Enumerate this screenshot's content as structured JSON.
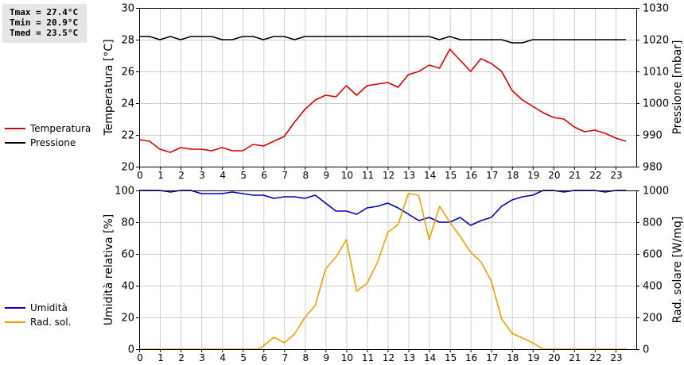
{
  "stats": {
    "tmax": "Tmax = 27.4°C",
    "tmin": "Tmin = 20.9°C",
    "tmed": "Tmed = 23.5°C"
  },
  "chart_data": [
    {
      "type": "line",
      "xlim": [
        0,
        24
      ],
      "xticks": [
        "0",
        "1",
        "2",
        "3",
        "4",
        "5",
        "6",
        "7",
        "8",
        "9",
        "10",
        "11",
        "12",
        "13",
        "14",
        "15",
        "16",
        "17",
        "18",
        "19",
        "20",
        "21",
        "22",
        "23"
      ],
      "ylabel": "Temperatura [°C]",
      "ylim": [
        20,
        30
      ],
      "yticks": [
        "20",
        "22",
        "24",
        "26",
        "28",
        "30"
      ],
      "ylabel_right": "Pressione [mbar]",
      "ylim_right": [
        980,
        1030
      ],
      "yticks_right": [
        "980",
        "990",
        "1000",
        "1010",
        "1020",
        "1030"
      ],
      "grid": true,
      "legend_position": "left",
      "series": [
        {
          "name": "Temperatura",
          "color": "#dd0000",
          "axis": "left",
          "x": [
            0,
            0.5,
            1,
            1.5,
            2,
            2.5,
            3,
            3.5,
            4,
            4.5,
            5,
            5.5,
            6,
            6.5,
            7,
            7.5,
            8,
            8.5,
            9,
            9.5,
            10,
            10.5,
            11,
            11.5,
            12,
            12.5,
            13,
            13.5,
            14,
            14.5,
            15,
            15.5,
            16,
            16.5,
            17,
            17.5,
            18,
            18.5,
            19,
            19.5,
            20,
            20.5,
            21,
            21.5,
            22,
            22.5,
            23,
            23.5
          ],
          "y": [
            21.7,
            21.6,
            21.1,
            20.9,
            21.2,
            21.1,
            21.1,
            21.0,
            21.2,
            21.0,
            21.0,
            21.4,
            21.3,
            21.6,
            21.9,
            22.8,
            23.6,
            24.2,
            24.5,
            24.4,
            25.1,
            24.5,
            25.1,
            25.2,
            25.3,
            25.0,
            25.8,
            26.0,
            26.4,
            26.2,
            27.4,
            26.7,
            26.0,
            26.8,
            26.5,
            26.0,
            24.8,
            24.2,
            23.8,
            23.4,
            23.1,
            23.0,
            22.5,
            22.2,
            22.3,
            22.1,
            21.8,
            21.6
          ]
        },
        {
          "name": "Pressione",
          "color": "#000000",
          "axis": "right",
          "x": [
            0,
            0.5,
            1,
            1.5,
            2,
            2.5,
            3,
            3.5,
            4,
            4.5,
            5,
            5.5,
            6,
            6.5,
            7,
            7.5,
            8,
            8.5,
            9,
            9.5,
            10,
            10.5,
            11,
            11.5,
            12,
            12.5,
            13,
            13.5,
            14,
            14.5,
            15,
            15.5,
            16,
            16.5,
            17,
            17.5,
            18,
            18.5,
            19,
            19.5,
            20,
            20.5,
            21,
            21.5,
            22,
            22.5,
            23,
            23.5
          ],
          "y": [
            1021,
            1021,
            1020,
            1021,
            1020,
            1021,
            1021,
            1021,
            1020,
            1020,
            1021,
            1021,
            1020,
            1021,
            1021,
            1020,
            1021,
            1021,
            1021,
            1021,
            1021,
            1021,
            1021,
            1021,
            1021,
            1021,
            1021,
            1021,
            1021,
            1020,
            1021,
            1020,
            1020,
            1020,
            1020,
            1020,
            1019,
            1019,
            1020,
            1020,
            1020,
            1020,
            1020,
            1020,
            1020,
            1020,
            1020,
            1020
          ]
        }
      ]
    },
    {
      "type": "line",
      "xlim": [
        0,
        24
      ],
      "xticks": [
        "0",
        "1",
        "2",
        "3",
        "4",
        "5",
        "6",
        "7",
        "8",
        "9",
        "10",
        "11",
        "12",
        "13",
        "14",
        "15",
        "16",
        "17",
        "18",
        "19",
        "20",
        "21",
        "22",
        "23"
      ],
      "ylabel": "Umidità relativa [%]",
      "ylim": [
        0,
        100
      ],
      "yticks": [
        "0",
        "20",
        "40",
        "60",
        "80",
        "100"
      ],
      "ylabel_right": "Rad. solare [W/mq]",
      "ylim_right": [
        0,
        1000
      ],
      "yticks_right": [
        "0",
        "200",
        "400",
        "600",
        "800",
        "1000"
      ],
      "grid": true,
      "legend_position": "left",
      "series": [
        {
          "name": "Umidità",
          "color": "#0000bb",
          "axis": "left",
          "x": [
            0,
            0.5,
            1,
            1.5,
            2,
            2.5,
            3,
            3.5,
            4,
            4.5,
            5,
            5.5,
            6,
            6.5,
            7,
            7.5,
            8,
            8.5,
            9,
            9.5,
            10,
            10.5,
            11,
            11.5,
            12,
            12.5,
            13,
            13.5,
            14,
            14.5,
            15,
            15.5,
            16,
            16.5,
            17,
            17.5,
            18,
            18.5,
            19,
            19.5,
            20,
            20.5,
            21,
            21.5,
            22,
            22.5,
            23,
            23.5
          ],
          "y": [
            100,
            100,
            100,
            99,
            100,
            100,
            98,
            98,
            98,
            99,
            98,
            97,
            97,
            95,
            96,
            96,
            95,
            97,
            92,
            87,
            87,
            85,
            89,
            90,
            92,
            89,
            85,
            81,
            83,
            80,
            80,
            83,
            78,
            81,
            83,
            90,
            94,
            96,
            97,
            100,
            100,
            99,
            100,
            100,
            100,
            99,
            100,
            100
          ]
        },
        {
          "name": "Rad. sol.",
          "color": "#f0a000",
          "axis": "right",
          "x": [
            0,
            0.5,
            1,
            1.5,
            2,
            2.5,
            3,
            3.5,
            4,
            4.5,
            5,
            5.5,
            5.75,
            6,
            6.5,
            7,
            7.5,
            8,
            8.5,
            9,
            9.5,
            10,
            10.5,
            11,
            11.5,
            12,
            12.5,
            13,
            13.5,
            14,
            14.5,
            15,
            15.5,
            16,
            16.5,
            17,
            17.5,
            18,
            18.5,
            19,
            19.5,
            20,
            20.5,
            21,
            21.5,
            22,
            22.5,
            23,
            23.5
          ],
          "y": [
            0,
            0,
            0,
            0,
            0,
            0,
            0,
            0,
            0,
            0,
            0,
            0,
            0,
            20,
            75,
            40,
            95,
            200,
            275,
            505,
            580,
            690,
            365,
            415,
            545,
            735,
            785,
            980,
            970,
            690,
            900,
            800,
            710,
            610,
            550,
            430,
            190,
            100,
            70,
            40,
            0,
            0,
            0,
            0,
            0,
            0,
            0,
            0,
            0
          ]
        }
      ]
    }
  ]
}
